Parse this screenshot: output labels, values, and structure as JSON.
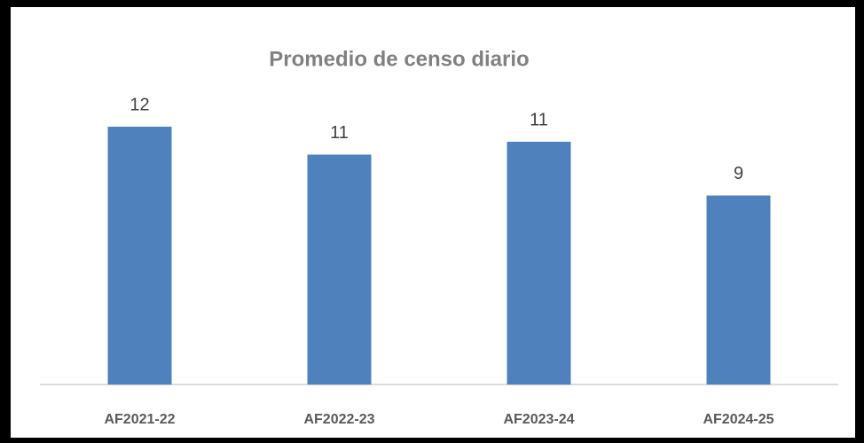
{
  "chart_data": {
    "type": "bar",
    "title": "Promedio de censo diario",
    "categories": [
      "AF2021-22",
      "AF2022-23",
      "AF2023-24",
      "AF2024-25"
    ],
    "values": [
      12.0,
      10.7,
      11.3,
      8.8
    ],
    "value_labels": [
      "12",
      "11",
      "11",
      "9"
    ],
    "color": "#4f81bd"
  }
}
